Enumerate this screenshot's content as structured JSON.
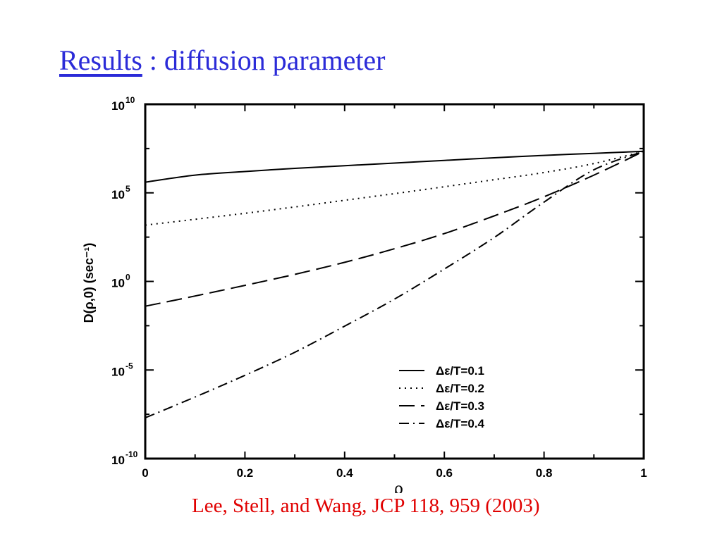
{
  "slide": {
    "title_link": "Results",
    "title_rest": " : diffusion parameter",
    "citation": "Lee, Stell, and Wang, JCP 118, 959 (2003)",
    "title_color": "#2b2bd8",
    "citation_color": "#e00000"
  },
  "chart_data": {
    "type": "line",
    "xlabel": "ρ",
    "ylabel": "D(ρ,0) (sec⁻¹)",
    "xlim": [
      0,
      1
    ],
    "ylim": [
      1e-10,
      10000000000.0
    ],
    "yscale": "log",
    "grid": false,
    "legend_position": "lower-right",
    "x_ticks": [
      "0",
      "0.2",
      "0.4",
      "0.6",
      "0.8",
      "1"
    ],
    "y_ticks": [
      {
        "base": "10",
        "exp": "-10"
      },
      {
        "base": "10",
        "exp": "-5"
      },
      {
        "base": "10",
        "exp": "0"
      },
      {
        "base": "10",
        "exp": "5"
      },
      {
        "base": "10",
        "exp": "10"
      }
    ],
    "x": [
      0,
      0.1,
      0.2,
      0.3,
      0.4,
      0.5,
      0.6,
      0.7,
      0.8,
      0.9,
      1.0
    ],
    "series": [
      {
        "name": "Δε/T=0.1",
        "dash": "solid",
        "values": [
          400000.0,
          1000000.0,
          1600000.0,
          2400000.0,
          3400000.0,
          4800000.0,
          6800000.0,
          9500000.0,
          13000000.0,
          17000000.0,
          22000000.0
        ]
      },
      {
        "name": "Δε/T=0.2",
        "dash": "dotted",
        "values": [
          1500.0,
          3200.0,
          7000.0,
          16000.0,
          38000.0,
          90000.0,
          220000.0,
          550000.0,
          1400000.0,
          4500000.0,
          22000000.0
        ]
      },
      {
        "name": "Δε/T=0.3",
        "dash": "dashed",
        "values": [
          0.04,
          0.15,
          0.6,
          2.5,
          12,
          70,
          500,
          5000,
          60000.0,
          1000000.0,
          22000000.0
        ]
      },
      {
        "name": "Δε/T=0.4",
        "dash": "dashdot",
        "values": [
          2e-08,
          3e-07,
          5e-06,
          0.0001,
          0.003,
          0.1,
          5.0,
          300,
          30000.0,
          2000000.0,
          22000000.0
        ]
      }
    ]
  }
}
